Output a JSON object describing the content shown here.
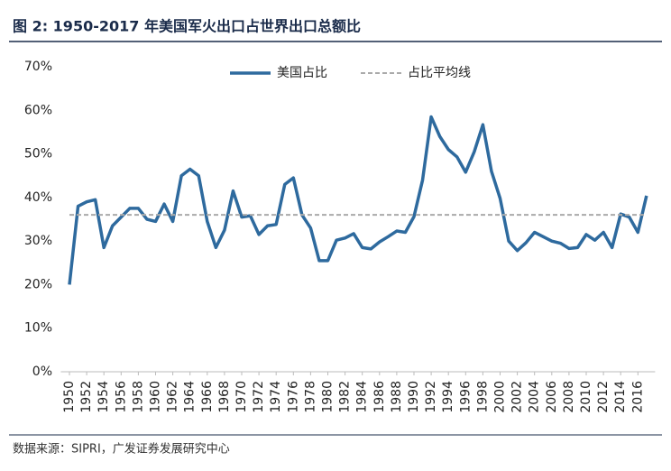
{
  "chart_data": {
    "type": "line",
    "title": "图 2:  1950-2017 年美国军火出口占世界出口总额比",
    "source": "数据来源：SIPRI，广发证券发展研究中心",
    "x": [
      1950,
      1951,
      1952,
      1953,
      1954,
      1955,
      1956,
      1957,
      1958,
      1959,
      1960,
      1961,
      1962,
      1963,
      1964,
      1965,
      1966,
      1967,
      1968,
      1969,
      1970,
      1971,
      1972,
      1973,
      1974,
      1975,
      1976,
      1977,
      1978,
      1979,
      1980,
      1981,
      1982,
      1983,
      1984,
      1985,
      1986,
      1987,
      1988,
      1989,
      1990,
      1991,
      1992,
      1993,
      1994,
      1995,
      1996,
      1997,
      1998,
      1999,
      2000,
      2001,
      2002,
      2003,
      2004,
      2005,
      2006,
      2007,
      2008,
      2009,
      2010,
      2011,
      2012,
      2013,
      2014,
      2015,
      2016,
      2017
    ],
    "series": [
      {
        "name": "美国占比",
        "color": "#2e6a9e",
        "dash": false,
        "values": [
          20,
          38,
          39,
          39.5,
          28.5,
          33.5,
          35.5,
          37.5,
          37.5,
          35,
          34.5,
          38.5,
          34.5,
          45,
          46.5,
          45,
          34.5,
          28.5,
          32.5,
          41.5,
          35.5,
          35.8,
          31.5,
          33.5,
          33.8,
          43,
          44.5,
          36,
          33,
          25.5,
          25.5,
          30.2,
          30.7,
          31.7,
          28.5,
          28.2,
          29.8,
          31,
          32.3,
          32,
          35.6,
          44,
          58.5,
          54,
          51,
          49.3,
          45.8,
          50.5,
          56.7,
          46,
          39.8,
          30,
          27.8,
          29.6,
          32,
          31,
          30,
          29.5,
          28.3,
          28.5,
          31.5,
          30.2,
          32,
          28.5,
          36.2,
          35.5,
          32,
          40.4
        ]
      },
      {
        "name": "占比平均线",
        "color": "#aaaaaa",
        "dash": true,
        "values": [
          36,
          36,
          36,
          36,
          36,
          36,
          36,
          36,
          36,
          36,
          36,
          36,
          36,
          36,
          36,
          36,
          36,
          36,
          36,
          36,
          36,
          36,
          36,
          36,
          36,
          36,
          36,
          36,
          36,
          36,
          36,
          36,
          36,
          36,
          36,
          36,
          36,
          36,
          36,
          36,
          36,
          36,
          36,
          36,
          36,
          36,
          36,
          36,
          36,
          36,
          36,
          36,
          36,
          36,
          36,
          36,
          36,
          36,
          36,
          36,
          36,
          36,
          36,
          36,
          36,
          36,
          36,
          36
        ]
      }
    ],
    "xlim": [
      1949,
      2018
    ],
    "xticks": [
      1950,
      1952,
      1954,
      1956,
      1958,
      1960,
      1962,
      1964,
      1966,
      1968,
      1970,
      1972,
      1974,
      1976,
      1978,
      1980,
      1982,
      1984,
      1986,
      1988,
      1990,
      1992,
      1994,
      1996,
      1998,
      2000,
      2002,
      2004,
      2006,
      2008,
      2010,
      2012,
      2014,
      2016
    ],
    "ylim": [
      0,
      70
    ],
    "yticks": [
      {
        "value": 0,
        "label": "0%"
      },
      {
        "value": 10,
        "label": "10%"
      },
      {
        "value": 20,
        "label": "20%"
      },
      {
        "value": 30,
        "label": "30%"
      },
      {
        "value": 40,
        "label": "40%"
      },
      {
        "value": 50,
        "label": "50%"
      },
      {
        "value": 60,
        "label": "60%"
      },
      {
        "value": 70,
        "label": "70%"
      }
    ],
    "grid": false
  }
}
